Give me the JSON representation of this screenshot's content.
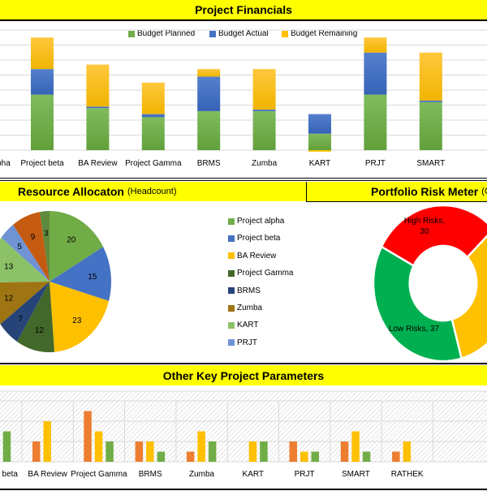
{
  "sections": {
    "financials": {
      "title": "Project Financials"
    },
    "resource": {
      "title": "Resource Allocaton",
      "subtitle": "(Headcount)"
    },
    "risk": {
      "title": "Portfolio Risk Meter",
      "subtitle": "(C"
    },
    "other": {
      "title": "Other Key Project Parameters"
    }
  },
  "chart_data": [
    {
      "id": "financials",
      "type": "bar",
      "stacked": true,
      "grid": true,
      "legend_position": "top",
      "categories": [
        "Project alpha",
        "Project beta",
        "BA Review",
        "Project Gamma",
        "BRMS",
        "Zumba",
        "KART",
        "PRJT",
        "SMART"
      ],
      "series": [
        {
          "name": "Budget Planned",
          "color": "#70ad47",
          "values": [
            null,
            37,
            28,
            22,
            26,
            26,
            11,
            37,
            32
          ]
        },
        {
          "name": "Budget Actual",
          "color": "#4472c4",
          "values": [
            null,
            17,
            1,
            2,
            23,
            1,
            13,
            28,
            1
          ]
        },
        {
          "name": "Budget Remaining",
          "color": "#ffc000",
          "values": [
            null,
            21,
            28,
            21,
            5,
            27,
            -1,
            10,
            32
          ]
        }
      ],
      "ylim": [
        0,
        80
      ]
    },
    {
      "id": "resource",
      "type": "pie",
      "categories": [
        "Project alpha",
        "Project beta",
        "BA Review",
        "Project Gamma",
        "BRMS",
        "Zumba",
        "KART",
        "PRJT",
        "",
        ""
      ],
      "values": [
        20,
        15,
        23,
        12,
        7,
        12,
        13,
        5,
        9,
        3
      ],
      "colors": [
        "#70ad47",
        "#4472c4",
        "#ffc000",
        "#43682b",
        "#264478",
        "#9e7512",
        "#8cc168",
        "#6f93d3",
        "#c55a11",
        "#5f8a3e"
      ],
      "labels": [
        "20",
        "15",
        "23",
        "12",
        "7",
        "12",
        "13",
        "5",
        "9",
        "3"
      ],
      "legend_position": "right"
    },
    {
      "id": "risk",
      "type": "pie",
      "donut": true,
      "slices": [
        {
          "label": "",
          "value": 33,
          "color": "#ffc000"
        },
        {
          "label": "Low Risks, 37",
          "value": 37,
          "color": "#00b050"
        },
        {
          "label_lines": [
            "High Risks,",
            "30"
          ],
          "value": 30,
          "color": "#ff0000"
        }
      ]
    },
    {
      "id": "other",
      "type": "bar",
      "grid": true,
      "categories": [
        "Project beta",
        "BA Review",
        "Project Gamma",
        "BRMS",
        "Zumba",
        "KART",
        "PRJT",
        "SMART",
        "RATHEK"
      ],
      "series": [
        {
          "color": "#ed7d31",
          "values": [
            null,
            2,
            5,
            2,
            1,
            0,
            2,
            2,
            1
          ]
        },
        {
          "color": "#ffc000",
          "values": [
            null,
            4,
            3,
            2,
            3,
            2,
            1,
            3,
            2
          ]
        },
        {
          "color": "#70ad47",
          "values": [
            3,
            0,
            2,
            1,
            2,
            2,
            1,
            1,
            0
          ]
        }
      ],
      "ylim": [
        0,
        6
      ]
    }
  ]
}
